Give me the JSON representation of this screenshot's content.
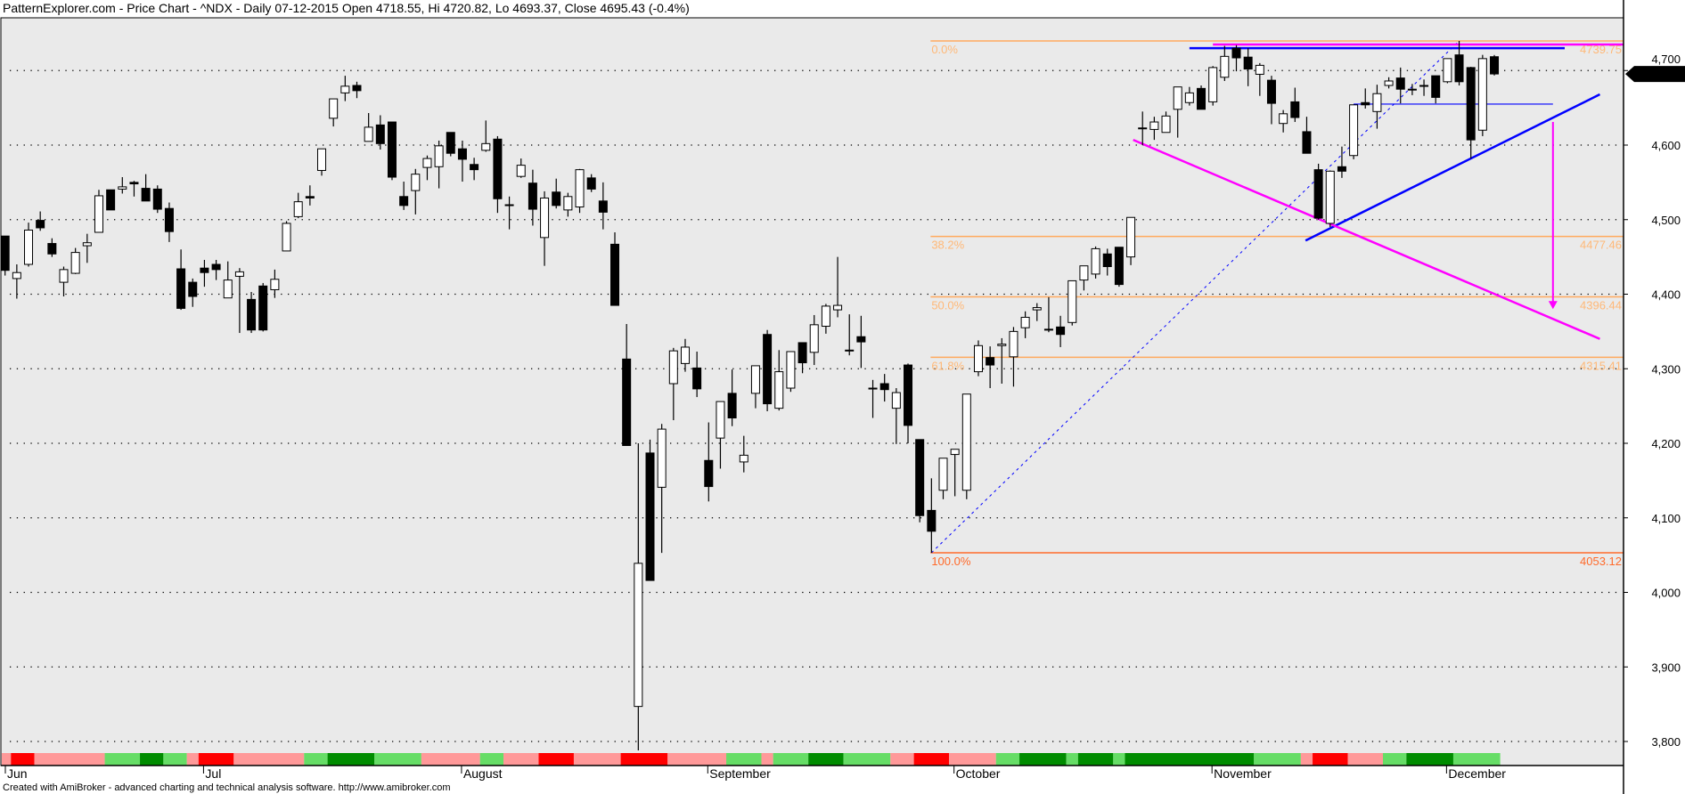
{
  "title": "PatternExplorer.com - Price Chart - ^NDX - Daily 07-12-2015 Open 4718.55, Hi 4720.82, Lo 4693.37, Close 4695.43 (-0.4%)",
  "footer": "Created with AmiBroker - advanced charting and technical analysis software. http://www.amibroker.com",
  "colors": {
    "background": "#eaeaea",
    "up_body": "#ffffff",
    "down_body": "#000000",
    "fib_line": "#ffaa5e",
    "fib_text": "#ffb877",
    "fib_100": "#ff6a2a",
    "trend_blue": "#0000ff",
    "trend_magenta": "#ff00ff",
    "strip_red": "#ff0000",
    "strip_pink": "#ff9999",
    "strip_lightgreen": "#66dd66",
    "strip_darkgreen": "#008c00"
  },
  "chart_data": {
    "type": "candlestick",
    "symbol": "^NDX",
    "ylim": [
      3760,
      4760
    ],
    "y_ticks": [
      {
        "value": 3800,
        "label": "3,800"
      },
      {
        "value": 3900,
        "label": "3,900"
      },
      {
        "value": 4000,
        "label": "4,000"
      },
      {
        "value": 4100,
        "label": "4,100"
      },
      {
        "value": 4200,
        "label": "4,200"
      },
      {
        "value": 4300,
        "label": "4,300"
      },
      {
        "value": 4400,
        "label": "4,400"
      },
      {
        "value": 4500,
        "label": "4,500"
      },
      {
        "value": 4600,
        "label": "4,600"
      },
      {
        "value": 4700,
        "label": "4,700"
      }
    ],
    "grid": true,
    "x_ticks": [
      {
        "label": "Jun",
        "index": 0
      },
      {
        "label": "Jul",
        "index": 17
      },
      {
        "label": "August",
        "index": 39
      },
      {
        "label": "September",
        "index": 60
      },
      {
        "label": "October",
        "index": 81
      },
      {
        "label": "November",
        "index": 103
      },
      {
        "label": "December",
        "index": 123
      }
    ],
    "last_price": {
      "value": 4695.43,
      "label": "4,695.43"
    },
    "ohlc": [
      [
        4478,
        4478,
        4425,
        4432
      ],
      [
        4421,
        4440,
        4394,
        4429
      ],
      [
        4440,
        4496,
        4437,
        4486
      ],
      [
        4499,
        4511,
        4485,
        4489
      ],
      [
        4468,
        4475,
        4450,
        4454
      ],
      [
        4416,
        4437,
        4397,
        4433
      ],
      [
        4428,
        4462,
        4427,
        4456
      ],
      [
        4465,
        4481,
        4442,
        4469
      ],
      [
        4483,
        4540,
        4483,
        4532
      ],
      [
        4540,
        4540,
        4513,
        4513
      ],
      [
        4541,
        4557,
        4535,
        4544
      ],
      [
        4550,
        4552,
        4531,
        4548
      ],
      [
        4542,
        4561,
        4525,
        4525
      ],
      [
        4541,
        4546,
        4509,
        4514
      ],
      [
        4515,
        4523,
        4470,
        4484
      ],
      [
        4434,
        4460,
        4379,
        4381
      ],
      [
        4416,
        4421,
        4383,
        4397
      ],
      [
        4435,
        4446,
        4410,
        4429
      ],
      [
        4440,
        4446,
        4419,
        4433
      ],
      [
        4395,
        4444,
        4395,
        4419
      ],
      [
        4424,
        4435,
        4348,
        4430
      ],
      [
        4393,
        4403,
        4348,
        4352
      ],
      [
        4411,
        4415,
        4350,
        4352
      ],
      [
        4406,
        4433,
        4395,
        4420
      ],
      [
        4458,
        4498,
        4458,
        4495
      ],
      [
        4504,
        4536,
        4502,
        4524
      ],
      [
        4531,
        4546,
        4519,
        4529
      ],
      [
        4566,
        4595,
        4559,
        4595
      ],
      [
        4636,
        4662,
        4625,
        4662
      ],
      [
        4670,
        4693,
        4659,
        4679
      ],
      [
        4680,
        4685,
        4663,
        4673
      ],
      [
        4605,
        4643,
        4605,
        4624
      ],
      [
        4627,
        4640,
        4594,
        4602
      ],
      [
        4631,
        4631,
        4553,
        4557
      ],
      [
        4531,
        4551,
        4513,
        4519
      ],
      [
        4539,
        4568,
        4507,
        4561
      ],
      [
        4570,
        4586,
        4553,
        4582
      ],
      [
        4571,
        4606,
        4542,
        4599
      ],
      [
        4617,
        4617,
        4585,
        4589
      ],
      [
        4595,
        4606,
        4551,
        4581
      ],
      [
        4574,
        4583,
        4553,
        4567
      ],
      [
        4593,
        4633,
        4591,
        4602
      ],
      [
        4608,
        4612,
        4509,
        4528
      ],
      [
        4520,
        4531,
        4487,
        4519
      ],
      [
        4558,
        4582,
        4556,
        4573
      ],
      [
        4549,
        4567,
        4492,
        4514
      ],
      [
        4476,
        4538,
        4438,
        4529
      ],
      [
        4537,
        4555,
        4515,
        4519
      ],
      [
        4513,
        4536,
        4504,
        4531
      ],
      [
        4517,
        4568,
        4509,
        4567
      ],
      [
        4556,
        4561,
        4537,
        4541
      ],
      [
        4525,
        4550,
        4487,
        4510
      ],
      [
        4467,
        4483,
        4385,
        4385
      ],
      [
        4313,
        4360,
        4197,
        4197
      ],
      [
        3847,
        4200,
        3788,
        4039
      ],
      [
        4187,
        4205,
        4016,
        4016
      ],
      [
        4141,
        4226,
        4053,
        4219
      ],
      [
        4280,
        4328,
        4231,
        4324
      ],
      [
        4307,
        4340,
        4296,
        4329
      ],
      [
        4301,
        4323,
        4262,
        4273
      ],
      [
        4177,
        4228,
        4122,
        4142
      ],
      [
        4207,
        4256,
        4166,
        4256
      ],
      [
        4267,
        4299,
        4223,
        4234
      ],
      [
        4175,
        4210,
        4161,
        4184
      ],
      [
        4267,
        4304,
        4247,
        4304
      ],
      [
        4346,
        4352,
        4243,
        4253
      ],
      [
        4247,
        4325,
        4244,
        4296
      ],
      [
        4274,
        4323,
        4269,
        4323
      ],
      [
        4335,
        4335,
        4294,
        4308
      ],
      [
        4322,
        4372,
        4305,
        4359
      ],
      [
        4357,
        4387,
        4347,
        4384
      ],
      [
        4379,
        4450,
        4369,
        4385
      ],
      [
        4325,
        4373,
        4318,
        4325
      ],
      [
        4343,
        4371,
        4301,
        4336
      ],
      [
        4274,
        4285,
        4234,
        4273
      ],
      [
        4280,
        4293,
        4256,
        4272
      ],
      [
        4247,
        4274,
        4199,
        4268
      ],
      [
        4305,
        4307,
        4200,
        4224
      ],
      [
        4205,
        4205,
        4094,
        4103
      ],
      [
        4110,
        4153,
        4053.12,
        4082
      ],
      [
        4137,
        4180,
        4125,
        4180
      ],
      [
        4185,
        4192,
        4129,
        4192
      ],
      [
        4137,
        4266,
        4125,
        4266
      ],
      [
        4296,
        4338,
        4290,
        4331
      ],
      [
        4315,
        4330,
        4274,
        4305
      ],
      [
        4331,
        4341,
        4280,
        4333
      ],
      [
        4316,
        4356,
        4276,
        4350
      ],
      [
        4355,
        4377,
        4341,
        4369
      ],
      [
        4379,
        4388,
        4364,
        4382
      ],
      [
        4353,
        4396,
        4349,
        4353
      ],
      [
        4356,
        4371,
        4329,
        4346
      ],
      [
        4362,
        4418,
        4358,
        4418
      ],
      [
        4419,
        4438,
        4405,
        4438
      ],
      [
        4427,
        4464,
        4421,
        4461
      ],
      [
        4454,
        4461,
        4425,
        4437
      ],
      [
        4463,
        4463,
        4410,
        4413
      ],
      [
        4450,
        4503,
        4439,
        4503
      ],
      [
        4623,
        4645,
        4600,
        4623
      ],
      [
        4621,
        4638,
        4607,
        4631
      ],
      [
        4617,
        4645,
        4617,
        4639
      ],
      [
        4648,
        4678,
        4610,
        4678
      ],
      [
        4657,
        4678,
        4653,
        4670
      ],
      [
        4676,
        4680,
        4648,
        4648
      ],
      [
        4658,
        4706,
        4653,
        4704
      ],
      [
        4691,
        4733,
        4686,
        4719
      ],
      [
        4730,
        4734,
        4699,
        4717
      ],
      [
        4718,
        4730,
        4679,
        4702
      ],
      [
        4695,
        4710,
        4666,
        4707
      ],
      [
        4687,
        4693,
        4628,
        4656
      ],
      [
        4629,
        4647,
        4617,
        4642
      ],
      [
        4658,
        4677,
        4631,
        4637
      ],
      [
        4618,
        4638,
        4589,
        4589
      ],
      [
        4567,
        4575,
        4500,
        4502
      ],
      [
        4495,
        4566,
        4490,
        4565
      ],
      [
        4571,
        4598,
        4556,
        4565
      ],
      [
        4586,
        4654,
        4581,
        4654
      ],
      [
        4657,
        4676,
        4649,
        4654
      ],
      [
        4645,
        4681,
        4622,
        4669
      ],
      [
        4680,
        4691,
        4676,
        4686
      ],
      [
        4690,
        4704,
        4656,
        4675
      ],
      [
        4675,
        4682,
        4667,
        4674
      ],
      [
        4680,
        4688,
        4666,
        4680
      ],
      [
        4693,
        4693,
        4656,
        4664
      ],
      [
        4685,
        4716,
        4683,
        4716
      ],
      [
        4721,
        4739.75,
        4680,
        4685
      ],
      [
        4704,
        4705,
        4582,
        4607
      ],
      [
        4620,
        4721,
        4612,
        4716
      ],
      [
        4718.55,
        4720.82,
        4693.37,
        4695.43
      ]
    ],
    "indicator_strip": [
      [
        "P",
        1
      ],
      [
        "R",
        2
      ],
      [
        "P",
        6
      ],
      [
        "L",
        3
      ],
      [
        "D",
        2
      ],
      [
        "L",
        2
      ],
      [
        "P",
        1
      ],
      [
        "R",
        3
      ],
      [
        "P",
        6
      ],
      [
        "L",
        2
      ],
      [
        "D",
        4
      ],
      [
        "L",
        4
      ],
      [
        "P",
        5
      ],
      [
        "L",
        2
      ],
      [
        "P",
        3
      ],
      [
        "R",
        3
      ],
      [
        "P",
        4
      ],
      [
        "R",
        4
      ],
      [
        "P",
        5
      ],
      [
        "L",
        3
      ],
      [
        "P",
        1
      ],
      [
        "L",
        3
      ],
      [
        "D",
        3
      ],
      [
        "L",
        4
      ],
      [
        "P",
        2
      ],
      [
        "R",
        3
      ],
      [
        "P",
        4
      ],
      [
        "L",
        2
      ],
      [
        "D",
        4
      ],
      [
        "L",
        1
      ],
      [
        "D",
        3
      ],
      [
        "L",
        1
      ],
      [
        "D",
        11
      ],
      [
        "L",
        4
      ],
      [
        "P",
        1
      ],
      [
        "R",
        3
      ],
      [
        "P",
        3
      ],
      [
        "L",
        2
      ],
      [
        "D",
        4
      ],
      [
        "L",
        4
      ]
    ],
    "fibonacci": {
      "from_index": 79,
      "levels": [
        {
          "pct": "0.0%",
          "value": 4739.75,
          "label": "4739.75"
        },
        {
          "pct": "38.2%",
          "value": 4477.46,
          "label": "4477.46"
        },
        {
          "pct": "50.0%",
          "value": 4396.44,
          "label": "4396.44"
        },
        {
          "pct": "61.8%",
          "value": 4315.41,
          "label": "4315.41"
        },
        {
          "pct": "100.0%",
          "value": 4053.12,
          "label": "4053.12"
        }
      ]
    },
    "trendlines": [
      {
        "color": "blue",
        "style": "dashed",
        "from": [
          79,
          4053.12
        ],
        "to": [
          124,
          4739.75
        ]
      },
      {
        "color": "blue",
        "style": "thick",
        "from": [
          101,
          4730
        ],
        "to": [
          133,
          4730
        ]
      },
      {
        "color": "magenta",
        "style": "thick",
        "from": [
          103,
          4735
        ],
        "to": [
          138,
          4735
        ]
      },
      {
        "color": "blue",
        "style": "thin",
        "from": [
          115,
          4655
        ],
        "to": [
          132,
          4655
        ]
      },
      {
        "color": "blue",
        "style": "thick",
        "from": [
          110.9,
          4472
        ],
        "to": [
          136,
          4668
        ]
      },
      {
        "color": "magenta",
        "style": "thick",
        "from": [
          96.2,
          4607
        ],
        "to": [
          136,
          4340
        ]
      }
    ],
    "arrow": {
      "color": "magenta",
      "index": 132,
      "from": 4631,
      "to": 4380
    }
  }
}
